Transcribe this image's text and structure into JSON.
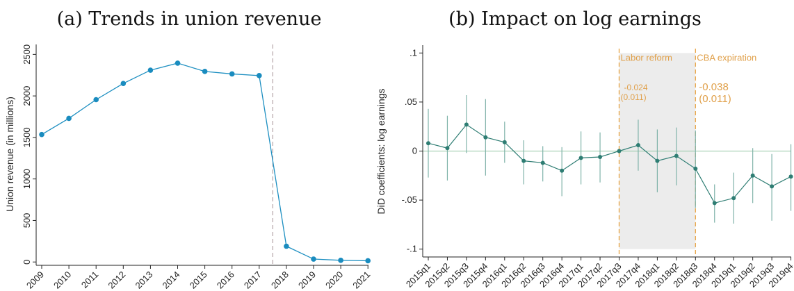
{
  "chart_data": [
    {
      "type": "line",
      "title": "(a) Trends in union revenue",
      "xlabel": "",
      "ylabel": "Union revenue (in millions)",
      "x": [
        "2009",
        "2010",
        "2011",
        "2012",
        "2013",
        "2014",
        "2015",
        "2016",
        "2017",
        "2018",
        "2019",
        "2020",
        "2021"
      ],
      "values": [
        1535,
        1730,
        1955,
        2150,
        2310,
        2395,
        2295,
        2265,
        2245,
        190,
        35,
        20,
        15
      ],
      "yticks": [
        0,
        500,
        1000,
        1500,
        2000,
        2500
      ],
      "ylim": [
        -40,
        2620
      ],
      "vline_after": "2017",
      "colors": {
        "line": "#1d8fc1",
        "marker": "#1a8cbf",
        "vline": "#b5a3a7",
        "axis": "#222222"
      },
      "grid": false
    },
    {
      "type": "line",
      "title": "(b) Impact on log earnings",
      "xlabel": "",
      "ylabel": "DiD coefficients: log earnings",
      "x": [
        "2015q1",
        "2015q2",
        "2015q3",
        "2015q4",
        "2016q1",
        "2016q2",
        "2016q3",
        "2016q4",
        "2017q1",
        "2017q2",
        "2017q3",
        "2017q4",
        "2018q1",
        "2018q2",
        "2018q3",
        "2018q4",
        "2019q1",
        "2019q2",
        "2019q3",
        "2019q4"
      ],
      "values": [
        0.008,
        0.003,
        0.027,
        0.014,
        0.009,
        -0.01,
        -0.012,
        -0.02,
        -0.007,
        -0.006,
        0.0,
        0.006,
        -0.01,
        -0.005,
        -0.018,
        -0.053,
        -0.048,
        -0.025,
        -0.036,
        -0.026
      ],
      "ci_low": [
        -0.027,
        -0.03,
        -0.002,
        -0.025,
        -0.012,
        -0.034,
        -0.031,
        -0.046,
        -0.034,
        -0.032,
        0.0,
        -0.02,
        -0.042,
        -0.035,
        -0.058,
        -0.073,
        -0.074,
        -0.053,
        -0.071,
        -0.061
      ],
      "ci_high": [
        0.043,
        0.036,
        0.057,
        0.053,
        0.03,
        0.011,
        0.005,
        0.004,
        0.02,
        0.019,
        0.0,
        0.032,
        0.022,
        0.024,
        0.021,
        -0.034,
        -0.022,
        0.003,
        -0.003,
        0.007
      ],
      "yticks": [
        0.1,
        0.05,
        0,
        -0.05,
        -0.1
      ],
      "ytick_labels": [
        ".1",
        ".05",
        "0",
        "-.05",
        "-.1"
      ],
      "ylim": [
        -0.108,
        0.108
      ],
      "shaded_region": {
        "from": "2017q3",
        "to": "2018q3"
      },
      "reference_lines": [
        {
          "at": "2017q3",
          "label": "Labor reform"
        },
        {
          "at": "2018q3",
          "label": "CBA expiration"
        }
      ],
      "annotations": [
        {
          "estimate": "-0.024",
          "se": "(0.011)"
        },
        {
          "estimate": "-0.038",
          "se": "(0.011)"
        }
      ],
      "colors": {
        "line": "#2e7d73",
        "marker": "#2e7d73",
        "ci": "#7fb3a9",
        "zero_line": "#8fc4a2",
        "shade": "#ececec",
        "reference": "#e8a444",
        "axis": "#222222"
      },
      "grid": false
    }
  ]
}
